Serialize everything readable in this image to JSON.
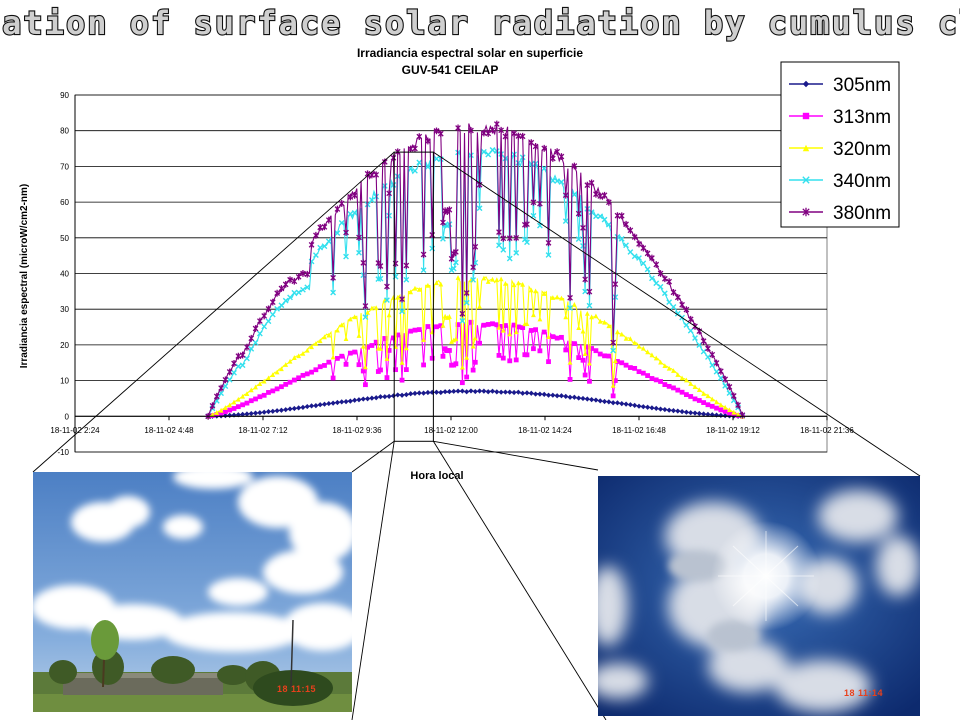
{
  "banner_title": "Attenuation of surface solar radiation by cumulus clouds",
  "photos": {
    "left_stamp": "18  11:15",
    "right_stamp": "18  11:14"
  },
  "chart_data": {
    "type": "scatter",
    "title": "Irradiancia espectral solar en superficie",
    "subtitle": "GUV-541 CEILAP",
    "xlabel": "Hora local",
    "ylabel": "Irradiancia espectral (microW/cm2-nm)",
    "ylim": [
      -10,
      90
    ],
    "yticks": [
      "-10",
      "0",
      "10",
      "20",
      "30",
      "40",
      "50",
      "60",
      "70",
      "80",
      "90"
    ],
    "xticks": [
      "18-11-02 2:24",
      "18-11-02 4:48",
      "18-11-02 7:12",
      "18-11-02 9:36",
      "18-11-02 12:00",
      "18-11-02 14:24",
      "18-11-02 16:48",
      "18-11-02 19:12",
      "18-11-02 21:36"
    ],
    "x_range_hours": [
      2.4,
      21.6
    ],
    "grid": true,
    "legend_position": "top-right",
    "sunrise_hour": 5.8,
    "sunset_hour": 19.45,
    "series": [
      {
        "name": "305nm",
        "color": "#1a1a8c",
        "marker": "diamond",
        "peak": 7,
        "shape": 1.6,
        "cloud_dips": false
      },
      {
        "name": "313nm",
        "color": "#ff00ff",
        "marker": "square",
        "peak": 26,
        "shape": 1.3,
        "cloud_dips": true
      },
      {
        "name": "320nm",
        "color": "#ffff00",
        "marker": "triangle",
        "peak": 38.5,
        "shape": 1.2,
        "cloud_dips": true
      },
      {
        "name": "340nm",
        "color": "#33e0ee",
        "marker": "x",
        "peak": 74,
        "shape": 0.95,
        "cloud_dips": true
      },
      {
        "name": "380nm",
        "color": "#800080",
        "marker": "star",
        "peak": 81,
        "shape": 0.9,
        "cloud_dips": true
      }
    ],
    "zoom_window_hours": [
      10.55,
      11.55
    ]
  }
}
